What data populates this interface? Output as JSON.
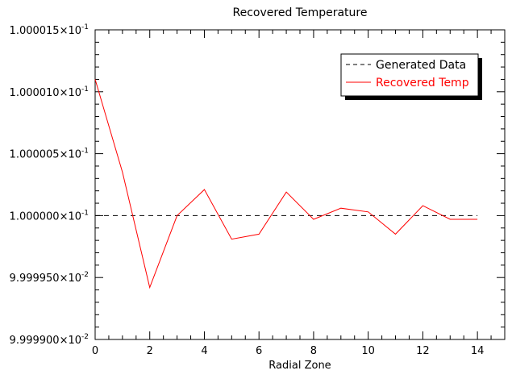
{
  "chart_data": {
    "type": "line",
    "title": "Recovered Temperature",
    "xlabel": "Radial Zone",
    "ylabel": "",
    "xlim": [
      0,
      15
    ],
    "ylim": [
      0.099999,
      0.1000015
    ],
    "x_ticks": [
      0,
      2,
      4,
      6,
      8,
      10,
      12,
      14
    ],
    "y_ticks": [
      {
        "value": 0.099999,
        "mantissa": "9.999900",
        "exp": "-2"
      },
      {
        "value": 0.0999995,
        "mantissa": "9.999950",
        "exp": "-2"
      },
      {
        "value": 0.1,
        "mantissa": "1.000000",
        "exp": "-1"
      },
      {
        "value": 0.1000005,
        "mantissa": "1.000005",
        "exp": "-1"
      },
      {
        "value": 0.100001,
        "mantissa": "1.000010",
        "exp": "-1"
      },
      {
        "value": 0.1000015,
        "mantissa": "1.000015",
        "exp": "-1"
      }
    ],
    "grid": false,
    "legend_position": "top-right",
    "series": [
      {
        "name": "Generated Data",
        "style": "dashed",
        "color": "#000000",
        "x": [
          0,
          14
        ],
        "y": [
          0.1,
          0.1
        ]
      },
      {
        "name": "Recovered Temp",
        "style": "solid",
        "color": "#ff0000",
        "x": [
          0,
          1,
          2,
          3,
          4,
          5,
          6,
          7,
          8,
          9,
          10,
          11,
          12,
          13,
          14
        ],
        "y": [
          0.1000011,
          0.10000035,
          0.09999942,
          0.1,
          0.10000021,
          0.09999981,
          0.09999985,
          0.10000019,
          0.09999997,
          0.10000006,
          0.10000003,
          0.09999985,
          0.10000008,
          0.09999997,
          0.09999997
        ]
      }
    ]
  }
}
